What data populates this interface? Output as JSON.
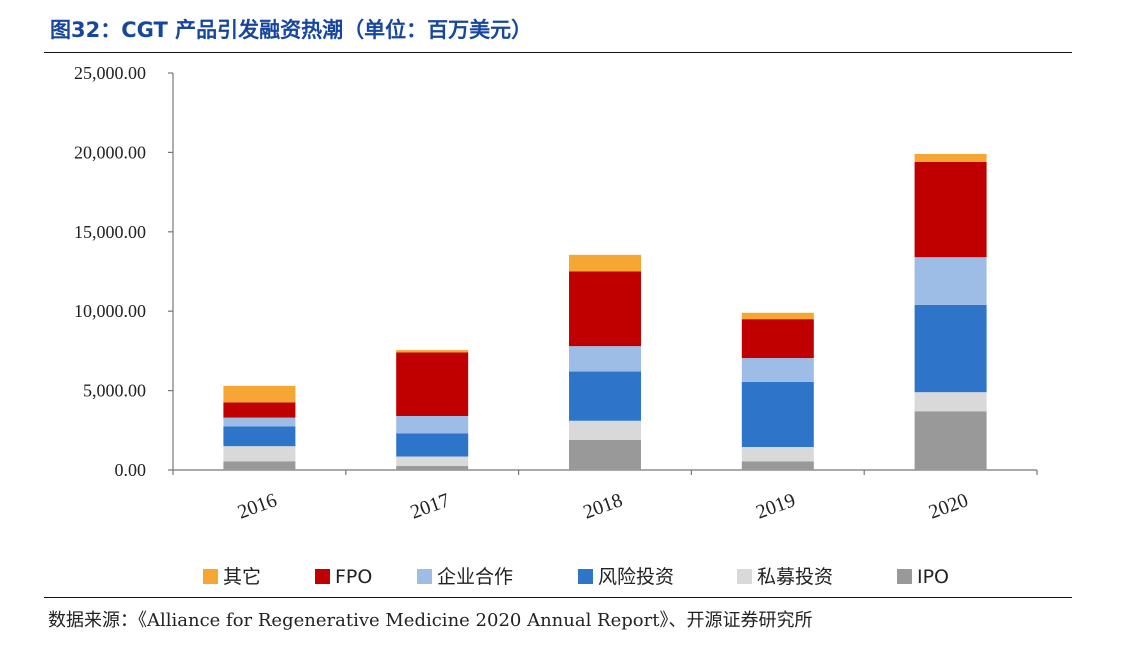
{
  "header": {
    "title": "图32：CGT 产品引发融资热潮（单位：百万美元）"
  },
  "footer": {
    "source": "数据来源：《Alliance for Regenerative Medicine 2020 Annual Report》、开源证券研究所"
  },
  "colors": {
    "其它": "#f5a633",
    "FPO": "#c00000",
    "企业合作": "#9dbde6",
    "风险投资": "#2e75c9",
    "私募投资": "#d9d9d9",
    "IPO": "#999999"
  },
  "chart_data": {
    "type": "bar",
    "stacked": true,
    "categories": [
      "2016",
      "2017",
      "2018",
      "2019",
      "2020"
    ],
    "ylim": [
      0,
      25000
    ],
    "yticks": [
      "0.00",
      "5,000.00",
      "10,000.00",
      "15,000.00",
      "20,000.00",
      "25,000.00"
    ],
    "legend_position": "bottom",
    "series": [
      {
        "name": "IPO",
        "values": [
          550,
          250,
          1900,
          550,
          3700
        ]
      },
      {
        "name": "私募投资",
        "values": [
          950,
          600,
          1200,
          900,
          1200
        ]
      },
      {
        "name": "风险投资",
        "values": [
          1250,
          1450,
          3100,
          4100,
          5500
        ]
      },
      {
        "name": "企业合作",
        "values": [
          550,
          1100,
          1600,
          1500,
          3000
        ]
      },
      {
        "name": "FPO",
        "values": [
          950,
          4000,
          4700,
          2450,
          6000
        ]
      },
      {
        "name": "其它",
        "values": [
          1050,
          150,
          1050,
          400,
          500
        ]
      }
    ],
    "legend_order": [
      "其它",
      "FPO",
      "企业合作",
      "风险投资",
      "私募投资",
      "IPO"
    ]
  }
}
